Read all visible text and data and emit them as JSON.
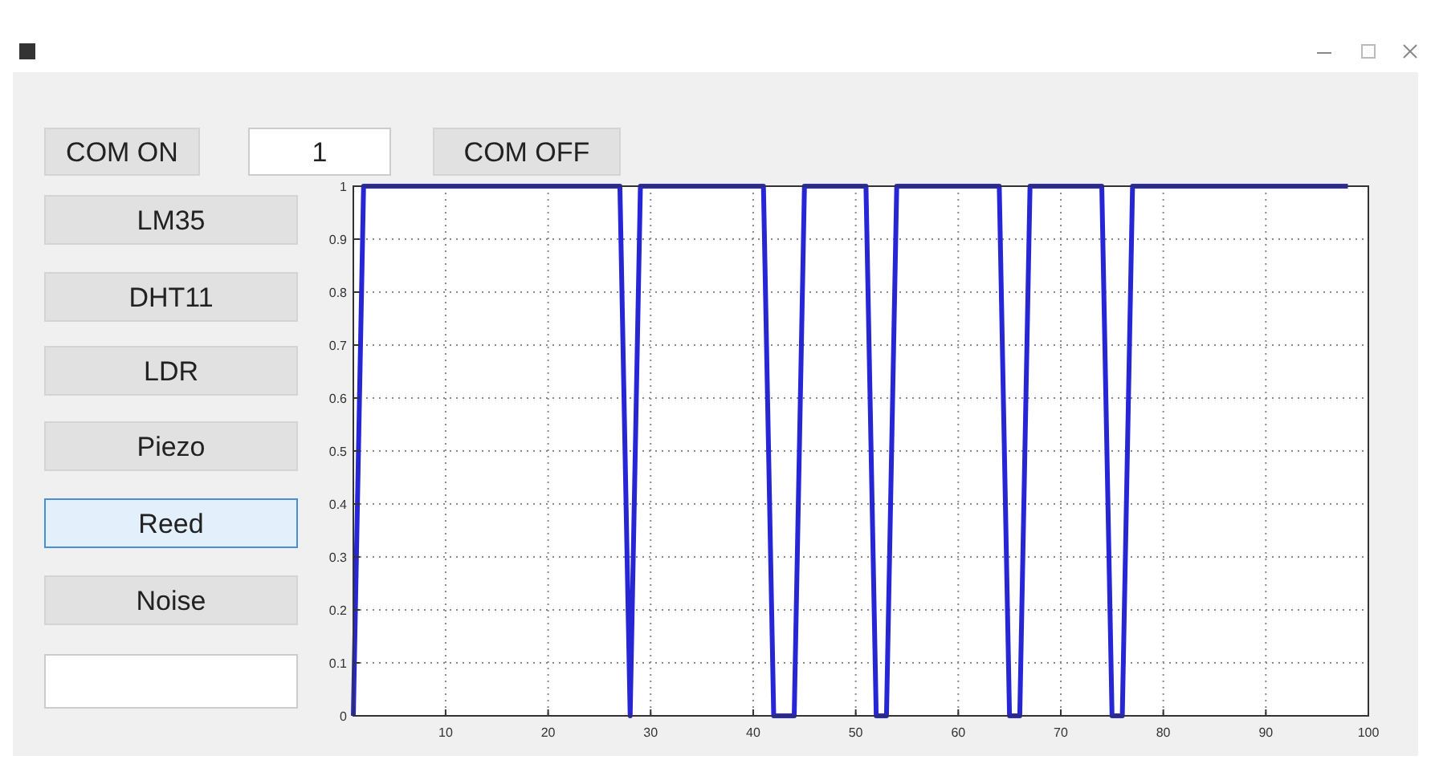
{
  "chart_data": [
    {
      "type": "other",
      "annotations": [
        "COM ON",
        "1",
        "COM OFF",
        "LM35",
        "DHT11",
        "LDR",
        "Piezo",
        "Reed",
        "Noise"
      ]
    },
    {
      "type": "line",
      "x": [
        1,
        2,
        27,
        28,
        29,
        41,
        42,
        43,
        44,
        45,
        51,
        52,
        53,
        54,
        64,
        65,
        66,
        67,
        74,
        75,
        76,
        77,
        98
      ],
      "series": [
        {
          "color": "#2626d4",
          "values": [
            0,
            1,
            1,
            0,
            1,
            1,
            0,
            0,
            0,
            1,
            1,
            0,
            0,
            1,
            1,
            0,
            0,
            1,
            1,
            0,
            0,
            1,
            1
          ]
        }
      ],
      "xlim": [
        1,
        100
      ],
      "xticks": [
        10,
        20,
        30,
        40,
        50,
        60,
        70,
        80,
        90,
        100
      ],
      "ylim": [
        0,
        1
      ],
      "yticks": [
        0,
        0.1,
        0.2,
        0.3,
        0.4,
        0.5,
        0.6,
        0.7,
        0.8,
        0.9,
        1
      ],
      "grid": true,
      "marker": "none",
      "line_style": "solid"
    }
  ]
}
